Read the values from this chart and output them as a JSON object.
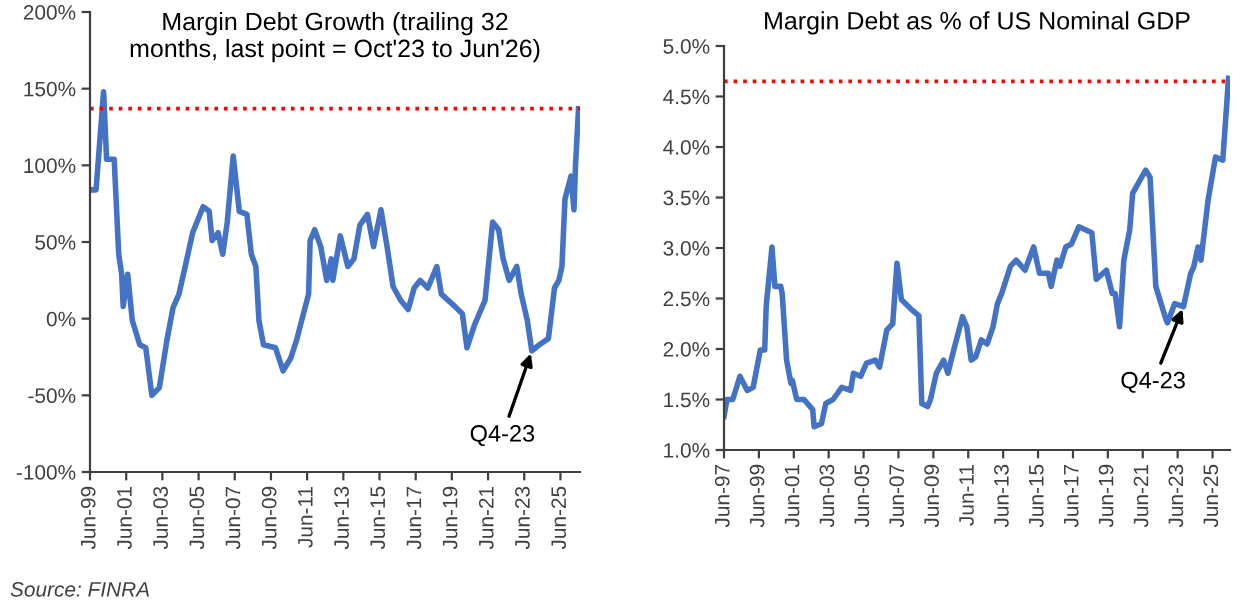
{
  "chart_data": [
    {
      "type": "line",
      "title": "Margin Debt Growth (trailing 32\nmonths, last point = Oct'23 to Jun'26)",
      "series": [
        {
          "color": "#4472c4",
          "x": [
            "1999-06",
            "1999-10",
            "2000-03",
            "2000-05",
            "2000-10",
            "2001-01",
            "2001-03",
            "2001-04",
            "2001-07",
            "2001-10",
            "2002-03",
            "2002-07",
            "2002-11",
            "2003-04",
            "2003-09",
            "2004-01",
            "2004-05",
            "2004-10",
            "2005-02",
            "2005-09",
            "2006-01",
            "2006-03",
            "2006-07",
            "2006-10",
            "2007-01",
            "2007-05",
            "2007-09",
            "2008-02",
            "2008-05",
            "2008-08",
            "2008-10",
            "2009-01",
            "2009-09",
            "2010-02",
            "2010-07",
            "2010-11",
            "2011-03",
            "2011-07",
            "2011-08",
            "2011-11",
            "2012-03",
            "2012-07",
            "2012-10",
            "2012-11",
            "2013-04",
            "2013-09",
            "2014-01",
            "2014-05",
            "2014-10",
            "2015-02",
            "2015-07",
            "2015-11",
            "2016-03",
            "2016-08",
            "2017-01",
            "2017-05",
            "2017-09",
            "2018-02",
            "2018-08",
            "2018-11",
            "2019-08",
            "2020-01",
            "2020-04",
            "2020-09",
            "2021-04",
            "2021-09",
            "2022-01",
            "2022-04",
            "2022-08",
            "2023-01",
            "2023-04",
            "2023-08",
            "2023-11",
            "2024-04",
            "2024-10",
            "2025-02",
            "2025-05",
            "2025-07",
            "2025-09",
            "2026-01",
            "2026-03",
            "2026-04",
            "2026-06"
          ],
          "values": [
            84,
            84,
            148,
            104,
            104,
            42,
            29,
            8,
            29,
            -1,
            -17,
            -19,
            -50,
            -45,
            -14,
            7,
            16,
            38,
            56,
            73,
            70,
            51,
            56,
            42,
            63,
            106,
            70,
            68,
            42,
            34,
            -1,
            -17,
            -19,
            -34,
            -26,
            -14,
            1,
            16,
            51,
            58,
            47,
            25,
            39,
            25,
            54,
            34,
            39,
            61,
            68,
            47,
            71,
            47,
            21,
            12,
            6,
            20,
            25,
            20,
            34,
            16,
            8,
            3,
            -19,
            -4,
            12,
            63,
            58,
            39,
            25,
            34,
            16,
            -1,
            -21,
            -17,
            -13,
            20,
            25,
            34,
            78,
            93,
            71,
            100,
            137
          ]
        }
      ],
      "xlim": [
        "1999-06",
        "2026-07"
      ],
      "xticks": [
        {
          "value": "1999-06",
          "label": "Jun-99"
        },
        {
          "value": "2001-06",
          "label": "Jun-01"
        },
        {
          "value": "2003-06",
          "label": "Jun-03"
        },
        {
          "value": "2005-06",
          "label": "Jun-05"
        },
        {
          "value": "2007-06",
          "label": "Jun-07"
        },
        {
          "value": "2009-06",
          "label": "Jun-09"
        },
        {
          "value": "2011-06",
          "label": "Jun-11"
        },
        {
          "value": "2013-06",
          "label": "Jun-13"
        },
        {
          "value": "2015-06",
          "label": "Jun-15"
        },
        {
          "value": "2017-06",
          "label": "Jun-17"
        },
        {
          "value": "2019-06",
          "label": "Jun-19"
        },
        {
          "value": "2021-06",
          "label": "Jun-21"
        },
        {
          "value": "2023-06",
          "label": "Jun-23"
        },
        {
          "value": "2025-06",
          "label": "Jun-25"
        }
      ],
      "ylim": [
        -100,
        200
      ],
      "yticks": [
        {
          "value": -100,
          "label": "-100%"
        },
        {
          "value": -50,
          "label": "-50%"
        },
        {
          "value": 0,
          "label": "0%"
        },
        {
          "value": 50,
          "label": "50%"
        },
        {
          "value": 100,
          "label": "100%"
        },
        {
          "value": 150,
          "label": "150%"
        },
        {
          "value": 200,
          "label": "200%"
        }
      ],
      "ref_lines": [
        {
          "axis": "y",
          "value": 137,
          "color": "#ff0000",
          "line_style": "dotted"
        }
      ],
      "annotations": [
        {
          "text": "Q4-23",
          "x": "2023-11",
          "y": -21
        },
        "Source: FINRA"
      ],
      "grid": false,
      "legend": false,
      "marker": "none",
      "line_style": "solid"
    },
    {
      "type": "line",
      "title": "Margin Debt as % of US Nominal GDP",
      "series": [
        {
          "color": "#4472c4",
          "x": [
            "1997-06",
            "1997-08",
            "1997-12",
            "1998-05",
            "1998-10",
            "1999-02",
            "1999-07",
            "1999-10",
            "1999-11",
            "2000-03",
            "2000-05",
            "2000-09",
            "2000-10",
            "2001-01",
            "2001-04",
            "2001-05",
            "2001-08",
            "2002-01",
            "2002-07",
            "2002-08",
            "2003-01",
            "2003-04",
            "2003-09",
            "2004-03",
            "2004-09",
            "2004-11",
            "2005-04",
            "2005-08",
            "2006-02",
            "2006-05",
            "2006-10",
            "2007-02",
            "2007-05",
            "2007-08",
            "2008-03",
            "2008-08",
            "2008-10",
            "2009-02",
            "2009-04",
            "2009-08",
            "2010-01",
            "2010-04",
            "2010-08",
            "2011-02",
            "2011-05",
            "2011-08",
            "2011-11",
            "2012-03",
            "2012-07",
            "2012-11",
            "2013-02",
            "2013-05",
            "2013-11",
            "2014-03",
            "2014-09",
            "2015-03",
            "2015-07",
            "2016-01",
            "2016-03",
            "2016-07",
            "2016-09",
            "2017-01",
            "2017-05",
            "2017-10",
            "2018-07",
            "2018-10",
            "2019-05",
            "2019-09",
            "2019-11",
            "2020-02",
            "2020-05",
            "2020-09",
            "2020-11",
            "2021-04",
            "2021-08",
            "2021-11",
            "2022-03",
            "2022-10",
            "2022-11",
            "2023-04",
            "2023-10",
            "2024-03",
            "2024-05",
            "2024-08",
            "2024-10",
            "2025-03",
            "2025-08",
            "2026-01",
            "2026-05"
          ],
          "values": [
            1.33,
            1.5,
            1.5,
            1.73,
            1.59,
            1.62,
            1.99,
            1.99,
            2.42,
            3.01,
            2.62,
            2.62,
            2.55,
            1.89,
            1.66,
            1.69,
            1.5,
            1.5,
            1.4,
            1.23,
            1.26,
            1.46,
            1.5,
            1.62,
            1.59,
            1.76,
            1.73,
            1.86,
            1.89,
            1.82,
            2.19,
            2.25,
            2.85,
            2.49,
            2.39,
            2.33,
            1.46,
            1.43,
            1.5,
            1.76,
            1.89,
            1.76,
            1.99,
            2.32,
            2.22,
            1.89,
            1.92,
            2.09,
            2.05,
            2.22,
            2.45,
            2.55,
            2.82,
            2.88,
            2.78,
            3.01,
            2.75,
            2.75,
            2.62,
            2.88,
            2.82,
            3.01,
            3.04,
            3.21,
            3.15,
            2.69,
            2.78,
            2.55,
            2.55,
            2.22,
            2.88,
            3.18,
            3.54,
            3.67,
            3.77,
            3.7,
            2.62,
            2.29,
            2.26,
            2.45,
            2.42,
            2.75,
            2.81,
            3.01,
            2.88,
            3.48,
            3.9,
            3.87,
            4.68
          ]
        }
      ],
      "xlim": [
        "1997-06",
        "2026-06"
      ],
      "xticks": [
        {
          "value": "1997-06",
          "label": "Jun-97"
        },
        {
          "value": "1999-06",
          "label": "Jun-99"
        },
        {
          "value": "2001-06",
          "label": "Jun-01"
        },
        {
          "value": "2003-06",
          "label": "Jun-03"
        },
        {
          "value": "2005-06",
          "label": "Jun-05"
        },
        {
          "value": "2007-06",
          "label": "Jun-07"
        },
        {
          "value": "2009-06",
          "label": "Jun-09"
        },
        {
          "value": "2011-06",
          "label": "Jun-11"
        },
        {
          "value": "2013-06",
          "label": "Jun-13"
        },
        {
          "value": "2015-06",
          "label": "Jun-15"
        },
        {
          "value": "2017-06",
          "label": "Jun-17"
        },
        {
          "value": "2019-06",
          "label": "Jun-19"
        },
        {
          "value": "2021-06",
          "label": "Jun-21"
        },
        {
          "value": "2023-06",
          "label": "Jun-23"
        },
        {
          "value": "2025-06",
          "label": "Jun-25"
        }
      ],
      "ylim": [
        1.0,
        5.0
      ],
      "yticks": [
        {
          "value": 1.0,
          "label": "1.0%"
        },
        {
          "value": 1.5,
          "label": "1.5%"
        },
        {
          "value": 2.0,
          "label": "2.0%"
        },
        {
          "value": 2.5,
          "label": "2.5%"
        },
        {
          "value": 3.0,
          "label": "3.0%"
        },
        {
          "value": 3.5,
          "label": "3.5%"
        },
        {
          "value": 4.0,
          "label": "4.0%"
        },
        {
          "value": 4.5,
          "label": "4.5%"
        },
        {
          "value": 5.0,
          "label": "5.0%"
        }
      ],
      "ref_lines": [
        {
          "axis": "y",
          "value": 4.65,
          "color": "#ff0000",
          "line_style": "dotted"
        }
      ],
      "annotations": [
        {
          "text": "Q4-23",
          "x": "2023-10",
          "y": 2.42
        }
      ],
      "grid": false,
      "legend": false,
      "marker": "none",
      "line_style": "solid"
    }
  ]
}
